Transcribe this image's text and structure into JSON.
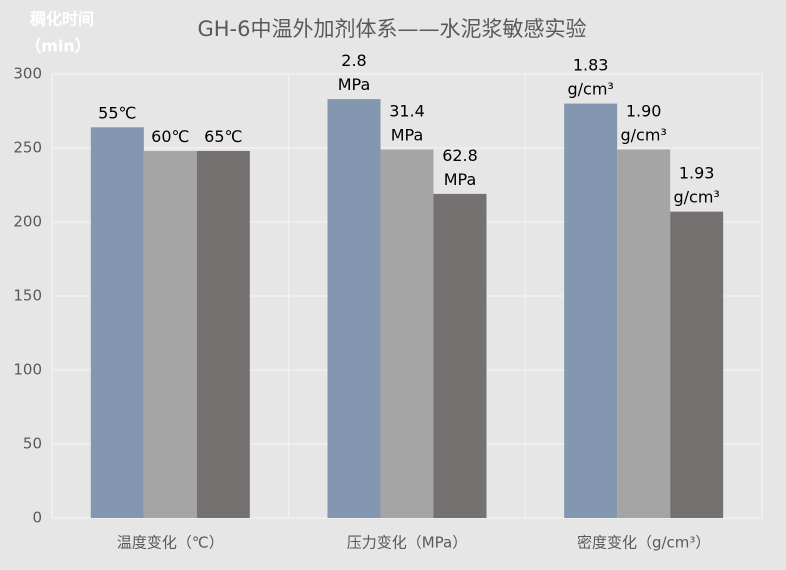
{
  "chart_data": {
    "type": "bar",
    "title": "GH-6中温外加剂体系——水泥浆敏感实验",
    "ylabel": [
      "稠化时间",
      "（min）"
    ],
    "categories": [
      "温度变化（℃）",
      "压力变化（MPa）",
      "密度变化（g/cm³）"
    ],
    "series": [
      {
        "color": "#8497b0",
        "values": [
          264,
          283,
          280
        ],
        "labels": [
          "55℃",
          "2.8 MPa",
          "1.83 g/cm³"
        ]
      },
      {
        "color": "#a5a5a5",
        "values": [
          248,
          249,
          249
        ],
        "labels": [
          "60℃",
          "31.4 MPa",
          "1.90 g/cm³"
        ]
      },
      {
        "color": "#767171",
        "values": [
          248,
          219,
          207
        ],
        "labels": [
          "65℃",
          "62.8 MPa",
          "1.93 g/cm³"
        ]
      }
    ],
    "ylim": [
      0,
      300
    ],
    "yticks": [
      0,
      50,
      100,
      150,
      200,
      250,
      300
    ],
    "grid": true
  }
}
